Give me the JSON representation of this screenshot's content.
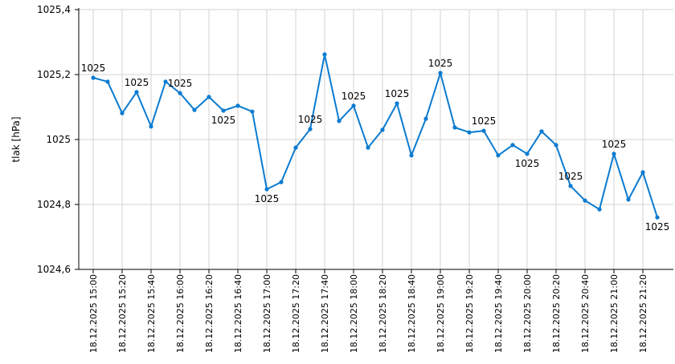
{
  "chart_data": {
    "type": "line",
    "title": "",
    "xlabel": "",
    "ylabel": "tlak [hPa]",
    "ylim": [
      1024.6,
      1025.4
    ],
    "yticks": [
      "1024,6",
      "1024,8",
      "1025",
      "1025,2",
      "1025,4"
    ],
    "ytick_values": [
      1024.6,
      1024.8,
      1025.0,
      1025.2,
      1025.4
    ],
    "grid": true,
    "legend": "none",
    "line_color": "#0a7bd1",
    "x": [
      "18.12.2025 15:00",
      "18.12.2025 15:10",
      "18.12.2025 15:20",
      "18.12.2025 15:30",
      "18.12.2025 15:40",
      "18.12.2025 15:50",
      "18.12.2025 16:00",
      "18.12.2025 16:10",
      "18.12.2025 16:20",
      "18.12.2025 16:30",
      "18.12.2025 16:40",
      "18.12.2025 16:50",
      "18.12.2025 17:00",
      "18.12.2025 17:10",
      "18.12.2025 17:20",
      "18.12.2025 17:30",
      "18.12.2025 17:40",
      "18.12.2025 17:50",
      "18.12.2025 18:00",
      "18.12.2025 18:10",
      "18.12.2025 18:20",
      "18.12.2025 18:30",
      "18.12.2025 18:40",
      "18.12.2025 18:50",
      "18.12.2025 19:00",
      "18.12.2025 19:10",
      "18.12.2025 19:20",
      "18.12.2025 19:30",
      "18.12.2025 19:40",
      "18.12.2025 19:50",
      "18.12.2025 20:00",
      "18.12.2025 20:10",
      "18.12.2025 20:20",
      "18.12.2025 20:30",
      "18.12.2025 20:40",
      "18.12.2025 20:50",
      "18.12.2025 21:00",
      "18.12.2025 21:10",
      "18.12.2025 21:20",
      "18.12.2025 21:30"
    ],
    "xtick_labels": [
      "18.12.2025 15:00",
      "18.12.2025 15:20",
      "18.12.2025 15:40",
      "18.12.2025 16:00",
      "18.12.2025 16:20",
      "18.12.2025 16:40",
      "18.12.2025 17:00",
      "18.12.2025 17:20",
      "18.12.2025 17:40",
      "18.12.2025 18:00",
      "18.12.2025 18:20",
      "18.12.2025 18:40",
      "18.12.2025 19:00",
      "18.12.2025 19:20",
      "18.12.2025 19:40",
      "18.12.2025 20:00",
      "18.12.2025 20:20",
      "18.12.2025 20:40",
      "18.12.2025 21:00",
      "18.12.2025 21:20"
    ],
    "values": [
      1025.19,
      1025.178,
      1025.081,
      1025.146,
      1025.04,
      1025.178,
      1025.143,
      1025.091,
      1025.131,
      1025.089,
      1025.104,
      1025.086,
      1024.847,
      1024.869,
      1024.975,
      1025.032,
      1025.262,
      1025.057,
      1025.104,
      1024.975,
      1025.03,
      1025.111,
      1024.951,
      1025.064,
      1025.205,
      1025.037,
      1025.022,
      1025.027,
      1024.951,
      1024.983,
      1024.956,
      1025.025,
      1024.983,
      1024.857,
      1024.812,
      1024.785,
      1024.956,
      1024.815,
      1024.899,
      1024.76
    ],
    "data_labels": [
      {
        "index": 0,
        "text": "1025",
        "position": "above"
      },
      {
        "index": 3,
        "text": "1025",
        "position": "above"
      },
      {
        "index": 6,
        "text": "1025",
        "position": "above"
      },
      {
        "index": 9,
        "text": "1025",
        "position": "below"
      },
      {
        "index": 12,
        "text": "1025",
        "position": "below"
      },
      {
        "index": 15,
        "text": "1025",
        "position": "above"
      },
      {
        "index": 18,
        "text": "1025",
        "position": "above"
      },
      {
        "index": 21,
        "text": "1025",
        "position": "above"
      },
      {
        "index": 24,
        "text": "1025",
        "position": "above"
      },
      {
        "index": 27,
        "text": "1025",
        "position": "above"
      },
      {
        "index": 30,
        "text": "1025",
        "position": "below"
      },
      {
        "index": 33,
        "text": "1025",
        "position": "above"
      },
      {
        "index": 36,
        "text": "1025",
        "position": "above"
      },
      {
        "index": 39,
        "text": "1025",
        "position": "below"
      }
    ]
  }
}
